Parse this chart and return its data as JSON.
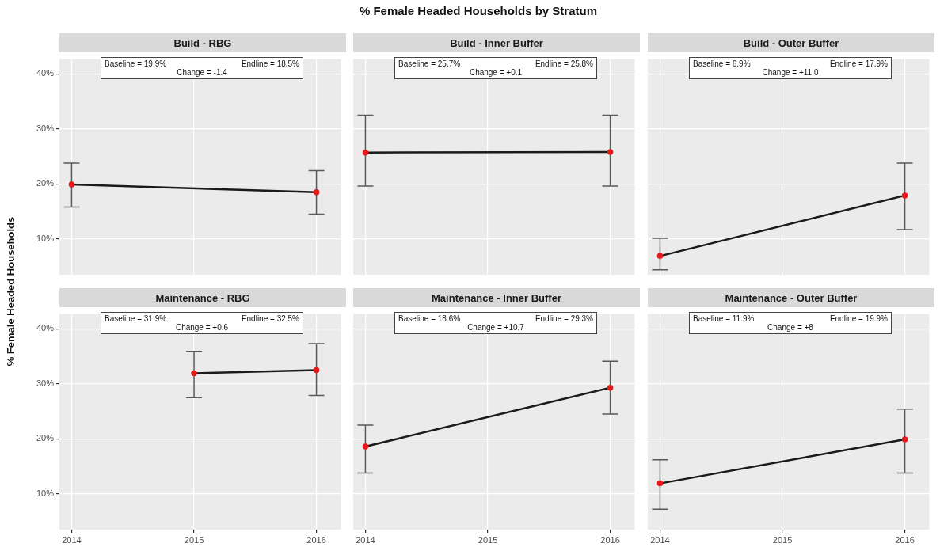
{
  "chart_data": [
    {
      "type": "line",
      "ylabel": "% Female Headed Households",
      "subtitle": "Build - RBG",
      "annotations": [
        "Baseline = 19.9%",
        "Endline = 18.5%",
        "Change = -1.4"
      ],
      "x": [
        2014,
        2016
      ],
      "series": [
        {
          "color": "#1a1a1a",
          "colors": [
            "#e41a1c",
            "#e41a1c"
          ],
          "values": [
            19.9,
            18.5
          ],
          "errors": [
            [
              15.8,
              23.8
            ],
            [
              14.5,
              22.4
            ]
          ]
        }
      ],
      "xlim": [
        2013.9,
        2016.2
      ],
      "ylim": [
        3.5,
        42.7
      ],
      "xticks": [
        {
          "value": 2014,
          "label": null
        },
        {
          "value": 2015,
          "label": null
        },
        {
          "value": 2016,
          "label": null
        }
      ],
      "yticks": [
        {
          "value": 10,
          "label": "10%"
        },
        {
          "value": 20,
          "label": "20%"
        },
        {
          "value": 30,
          "label": "30%"
        },
        {
          "value": 40,
          "label": "40%"
        }
      ],
      "grid": true,
      "marker": "circle",
      "tick_labels": "y"
    },
    {
      "type": "line",
      "title": "% Female Headed Households by Stratum",
      "subtitle": "Build - Inner Buffer",
      "annotations": [
        "Baseline = 25.7%",
        "Endline = 25.8%",
        "Change = +0.1"
      ],
      "x": [
        2014,
        2016
      ],
      "series": [
        {
          "color": "#1a1a1a",
          "colors": [
            "#e41a1c",
            "#e41a1c"
          ],
          "values": [
            25.7,
            25.8
          ],
          "errors": [
            [
              19.6,
              32.5
            ],
            [
              19.6,
              32.5
            ]
          ]
        }
      ],
      "xlim": [
        2013.9,
        2016.2
      ],
      "ylim": [
        3.5,
        42.7
      ],
      "xticks": [
        {
          "value": 2014,
          "label": null
        },
        {
          "value": 2015,
          "label": null
        },
        {
          "value": 2016,
          "label": null
        }
      ],
      "yticks": [
        {
          "value": 10,
          "label": null
        },
        {
          "value": 20,
          "label": null
        },
        {
          "value": 30,
          "label": null
        },
        {
          "value": 40,
          "label": null
        }
      ],
      "grid": true,
      "marker": "circle",
      "tick_labels": false
    },
    {
      "type": "line",
      "subtitle": "Build - Outer Buffer",
      "annotations": [
        "Baseline = 6.9%",
        "Endline = 17.9%",
        "Change = +11.0"
      ],
      "x": [
        2014,
        2016
      ],
      "series": [
        {
          "color": "#1a1a1a",
          "colors": [
            "#e41a1c",
            "#e41a1c"
          ],
          "values": [
            6.9,
            17.9
          ],
          "errors": [
            [
              4.4,
              10.1
            ],
            [
              11.7,
              23.8
            ]
          ]
        }
      ],
      "xlim": [
        2013.9,
        2016.2
      ],
      "ylim": [
        3.5,
        42.7
      ],
      "xticks": [
        {
          "value": 2014,
          "label": null
        },
        {
          "value": 2015,
          "label": null
        },
        {
          "value": 2016,
          "label": null
        }
      ],
      "yticks": [
        {
          "value": 10,
          "label": null
        },
        {
          "value": 20,
          "label": null
        },
        {
          "value": 30,
          "label": null
        },
        {
          "value": 40,
          "label": null
        }
      ],
      "grid": true,
      "marker": "circle",
      "tick_labels": false
    },
    {
      "type": "line",
      "subtitle": "Maintenance - RBG",
      "annotations": [
        "Baseline = 31.9%",
        "Endline = 32.5%",
        "Change = +0.6"
      ],
      "x": [
        2015,
        2016
      ],
      "series": [
        {
          "color": "#1a1a1a",
          "colors": [
            "#e41a1c",
            "#e41a1c"
          ],
          "values": [
            31.9,
            32.5
          ],
          "errors": [
            [
              27.5,
              35.9
            ],
            [
              27.9,
              37.3
            ]
          ]
        }
      ],
      "xlim": [
        2013.9,
        2016.2
      ],
      "ylim": [
        3.5,
        42.7
      ],
      "xticks": [
        2014,
        2015,
        2016
      ],
      "yticks": [
        {
          "value": 10,
          "label": "10%"
        },
        {
          "value": 20,
          "label": "20%"
        },
        {
          "value": 30,
          "label": "30%"
        },
        {
          "value": 40,
          "label": "40%"
        }
      ],
      "grid": true,
      "marker": "circle"
    },
    {
      "type": "line",
      "subtitle": "Maintenance - Inner Buffer",
      "annotations": [
        "Baseline = 18.6%",
        "Endline = 29.3%",
        "Change = +10.7"
      ],
      "x": [
        2014,
        2016
      ],
      "series": [
        {
          "color": "#1a1a1a",
          "colors": [
            "#e41a1c",
            "#e41a1c"
          ],
          "values": [
            18.6,
            29.3
          ],
          "errors": [
            [
              13.8,
              22.5
            ],
            [
              24.5,
              34.1
            ]
          ]
        }
      ],
      "xlim": [
        2013.9,
        2016.2
      ],
      "ylim": [
        3.5,
        42.7
      ],
      "xticks": [
        2014,
        2015,
        2016
      ],
      "yticks": [
        {
          "value": 10,
          "label": null
        },
        {
          "value": 20,
          "label": null
        },
        {
          "value": 30,
          "label": null
        },
        {
          "value": 40,
          "label": null
        }
      ],
      "grid": true,
      "marker": "circle",
      "tick_labels": "x"
    },
    {
      "type": "line",
      "subtitle": "Maintenance - Outer Buffer",
      "annotations": [
        "Baseline = 11.9%",
        "Endline = 19.9%",
        "Change = +8"
      ],
      "x": [
        2014,
        2016
      ],
      "series": [
        {
          "color": "#1a1a1a",
          "colors": [
            "#e41a1c",
            "#e41a1c"
          ],
          "values": [
            11.9,
            19.9
          ],
          "errors": [
            [
              7.2,
              16.2
            ],
            [
              13.8,
              25.4
            ]
          ]
        }
      ],
      "xlim": [
        2013.9,
        2016.2
      ],
      "ylim": [
        3.5,
        42.7
      ],
      "xticks": [
        2014,
        2015,
        2016
      ],
      "yticks": [
        {
          "value": 10,
          "label": null
        },
        {
          "value": 20,
          "label": null
        },
        {
          "value": 30,
          "label": null
        },
        {
          "value": 40,
          "label": null
        }
      ],
      "grid": true,
      "marker": "circle",
      "tick_labels": "x"
    }
  ]
}
